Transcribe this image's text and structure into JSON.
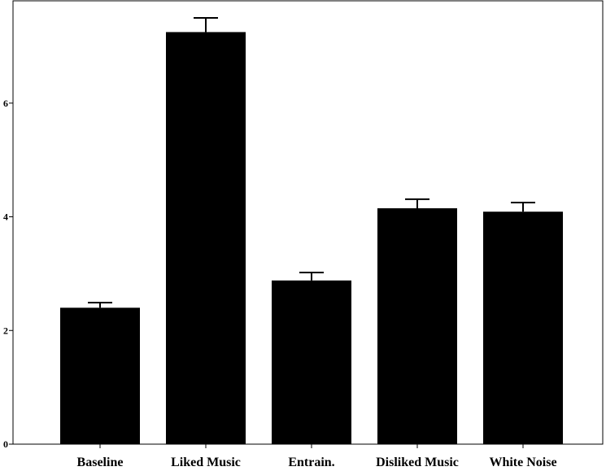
{
  "chart_data": {
    "type": "bar",
    "title": "",
    "xlabel": "",
    "ylabel": "",
    "categories": [
      "Baseline",
      "Liked Music",
      "Entrain.",
      "Disliked Music",
      "White Noise"
    ],
    "values": [
      2.4,
      7.25,
      2.88,
      4.15,
      4.09
    ],
    "error_upper": [
      0.09,
      0.25,
      0.14,
      0.16,
      0.16
    ],
    "ylim": [
      0,
      7.8
    ],
    "yticks": [
      0,
      2,
      4,
      6
    ],
    "ytick_labels": [
      "0",
      "2",
      "4",
      "6"
    ],
    "grid": false,
    "legend": "none",
    "colors": {
      "bar": "#000000",
      "axis": "#000000",
      "background": "#ffffff"
    }
  }
}
